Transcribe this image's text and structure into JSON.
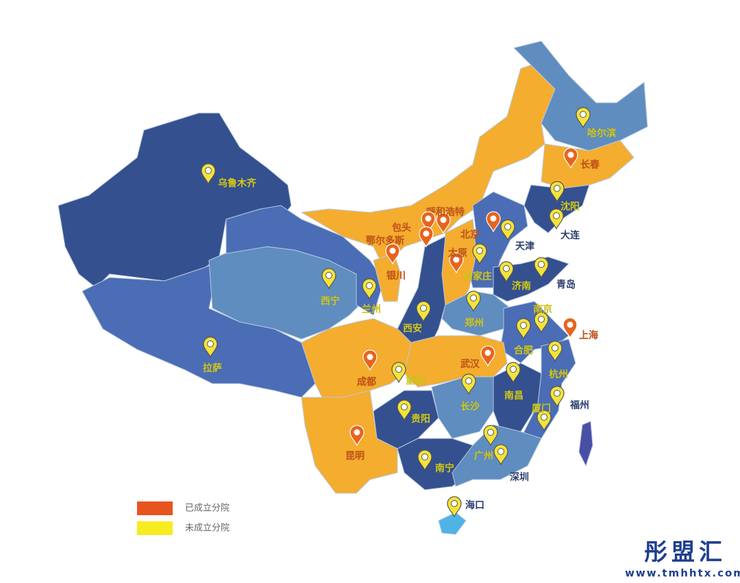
{
  "legend": [
    {
      "label": "已成立分院",
      "color": "#e8541e",
      "cities": [
        "呼和浩特",
        "包头",
        "鄂尔多斯",
        "北京",
        "太原",
        "银川",
        "长春",
        "上海",
        "成都",
        "武汉",
        "昆明"
      ]
    },
    {
      "label": "未成立分院",
      "color": "#f7ec1f",
      "cities": [
        "哈尔滨",
        "乌鲁木齐",
        "沈阳",
        "大连",
        "天津",
        "石家庄",
        "济南",
        "青岛",
        "西宁",
        "兰州",
        "西安",
        "郑州",
        "南京",
        "合肥",
        "拉萨",
        "重庆",
        "杭州",
        "南昌",
        "长沙",
        "贵阳",
        "厦门",
        "福州",
        "广州",
        "深圳",
        "南宁",
        "海口"
      ]
    }
  ],
  "watermark": {
    "brand": "彤盟汇",
    "url": "www.tmhhtx.com"
  }
}
